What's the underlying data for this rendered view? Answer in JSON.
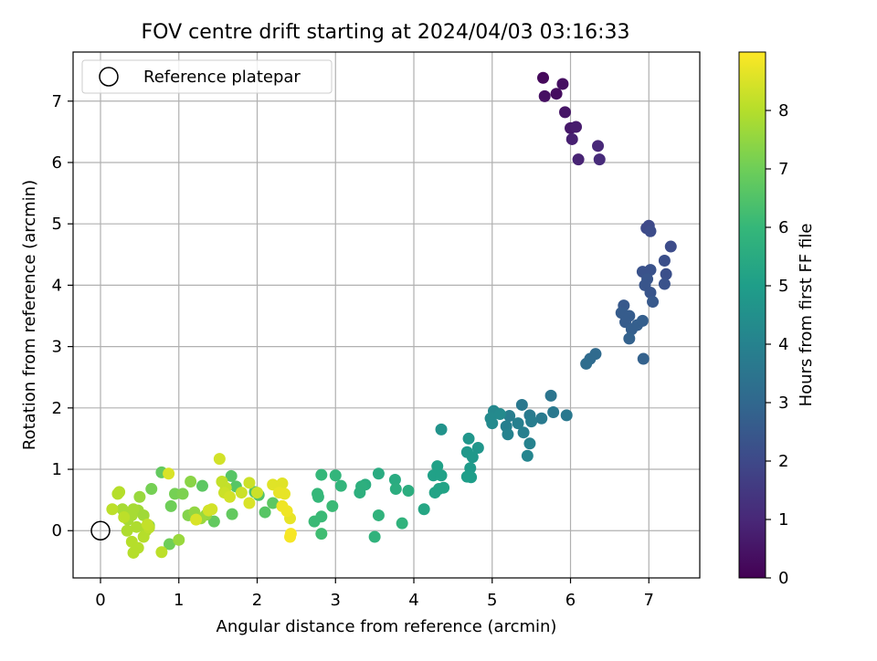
{
  "chart_data": {
    "type": "scatter",
    "title": "FOV centre drift starting at 2024/04/03 03:16:33",
    "xlabel": "Angular distance from reference (arcmin)",
    "ylabel": "Rotation from reference (arcmin)",
    "xlim": [
      -0.35,
      7.65
    ],
    "ylim": [
      -0.77,
      7.8
    ],
    "xticks": [
      0,
      1,
      2,
      3,
      4,
      5,
      6,
      7
    ],
    "yticks": [
      0,
      1,
      2,
      3,
      4,
      5,
      6,
      7
    ],
    "grid": true,
    "legend": {
      "position": "top-left",
      "entries": [
        "Reference platepar"
      ]
    },
    "reference_point": {
      "x": 0,
      "y": 0,
      "marker": "open-circle",
      "label": "Reference platepar"
    },
    "colorbar": {
      "label": "Hours from first FF file",
      "min": 0,
      "max": 9,
      "ticks": [
        0,
        1,
        2,
        3,
        4,
        5,
        6,
        7,
        8
      ],
      "colormap": "viridis",
      "colors": [
        "#440154",
        "#482878",
        "#3e4989",
        "#31688e",
        "#26828e",
        "#1f9e89",
        "#35b779",
        "#6ece58",
        "#b5de2b",
        "#fde725"
      ]
    },
    "series": [
      {
        "points": [
          [
            5.65,
            7.38,
            0.2
          ],
          [
            5.82,
            7.12,
            0.3
          ],
          [
            5.9,
            7.28,
            0.35
          ],
          [
            5.67,
            7.08,
            0.4
          ],
          [
            5.93,
            6.82,
            0.5
          ],
          [
            6.0,
            6.56,
            0.6
          ],
          [
            6.07,
            6.58,
            0.7
          ],
          [
            6.02,
            6.38,
            0.8
          ],
          [
            6.1,
            6.05,
            0.9
          ],
          [
            6.35,
            6.27,
            1.0
          ],
          [
            6.37,
            6.05,
            1.1
          ],
          [
            6.97,
            4.93,
            2.0
          ],
          [
            7.0,
            4.97,
            2.0
          ],
          [
            7.02,
            4.88,
            2.1
          ],
          [
            7.28,
            4.63,
            2.1
          ],
          [
            7.2,
            4.4,
            2.2
          ],
          [
            7.22,
            4.18,
            2.2
          ],
          [
            7.2,
            4.02,
            2.3
          ],
          [
            6.92,
            4.22,
            2.3
          ],
          [
            7.02,
            4.25,
            2.3
          ],
          [
            6.98,
            4.1,
            2.4
          ],
          [
            6.95,
            4.0,
            2.4
          ],
          [
            7.02,
            3.88,
            2.4
          ],
          [
            7.05,
            3.73,
            2.5
          ],
          [
            6.68,
            3.67,
            2.5
          ],
          [
            6.65,
            3.55,
            2.6
          ],
          [
            6.75,
            3.5,
            2.6
          ],
          [
            6.7,
            3.4,
            2.6
          ],
          [
            6.85,
            3.35,
            2.7
          ],
          [
            6.92,
            3.42,
            2.7
          ],
          [
            6.78,
            3.28,
            2.7
          ],
          [
            6.75,
            3.13,
            2.8
          ],
          [
            6.93,
            2.8,
            2.8
          ],
          [
            6.32,
            2.88,
            3.1
          ],
          [
            6.25,
            2.8,
            3.1
          ],
          [
            6.2,
            2.72,
            3.2
          ],
          [
            5.75,
            2.2,
            3.5
          ],
          [
            5.38,
            2.05,
            3.6
          ],
          [
            5.78,
            1.93,
            3.6
          ],
          [
            5.95,
            1.88,
            3.6
          ],
          [
            5.63,
            1.83,
            3.7
          ],
          [
            5.48,
            1.88,
            3.7
          ],
          [
            5.5,
            1.78,
            3.8
          ],
          [
            5.22,
            1.87,
            3.8
          ],
          [
            5.33,
            1.75,
            3.9
          ],
          [
            5.18,
            1.7,
            3.9
          ],
          [
            5.4,
            1.6,
            3.9
          ],
          [
            5.2,
            1.57,
            4.0
          ],
          [
            5.48,
            1.42,
            4.0
          ],
          [
            5.45,
            1.22,
            4.1
          ],
          [
            5.02,
            1.95,
            4.2
          ],
          [
            4.98,
            1.83,
            4.3
          ],
          [
            5.0,
            1.75,
            4.3
          ],
          [
            5.1,
            1.9,
            4.3
          ],
          [
            4.35,
            1.65,
            4.6
          ],
          [
            4.7,
            1.5,
            4.7
          ],
          [
            4.82,
            1.35,
            4.7
          ],
          [
            4.68,
            1.28,
            4.8
          ],
          [
            4.75,
            1.2,
            4.8
          ],
          [
            4.72,
            1.02,
            4.9
          ],
          [
            4.73,
            0.87,
            5.0
          ],
          [
            4.68,
            0.88,
            5.0
          ],
          [
            4.3,
            1.05,
            5.1
          ],
          [
            4.25,
            0.9,
            5.1
          ],
          [
            4.35,
            0.9,
            5.1
          ],
          [
            4.27,
            0.62,
            5.2
          ],
          [
            4.38,
            0.7,
            5.2
          ],
          [
            4.32,
            0.68,
            5.2
          ],
          [
            4.13,
            0.35,
            5.3
          ],
          [
            3.76,
            0.83,
            5.5
          ],
          [
            3.55,
            0.93,
            5.5
          ],
          [
            3.93,
            0.65,
            5.6
          ],
          [
            3.77,
            0.68,
            5.6
          ],
          [
            3.38,
            0.75,
            5.6
          ],
          [
            3.33,
            0.72,
            5.7
          ],
          [
            3.31,
            0.62,
            5.7
          ],
          [
            3.55,
            0.25,
            5.8
          ],
          [
            3.85,
            0.12,
            5.8
          ],
          [
            3.5,
            -0.1,
            5.8
          ],
          [
            3.0,
            0.9,
            5.9
          ],
          [
            3.07,
            0.73,
            5.9
          ],
          [
            2.82,
            0.91,
            6.0
          ],
          [
            2.77,
            0.6,
            6.0
          ],
          [
            2.78,
            0.55,
            6.0
          ],
          [
            2.96,
            0.4,
            6.1
          ],
          [
            2.82,
            0.23,
            6.1
          ],
          [
            2.73,
            0.15,
            6.1
          ],
          [
            2.82,
            -0.05,
            6.2
          ],
          [
            2.02,
            0.58,
            6.5
          ],
          [
            1.97,
            0.63,
            6.5
          ],
          [
            1.67,
            0.89,
            6.6
          ],
          [
            1.73,
            0.72,
            6.6
          ],
          [
            2.1,
            0.3,
            6.6
          ],
          [
            2.2,
            0.45,
            6.7
          ],
          [
            1.3,
            0.73,
            6.7
          ],
          [
            1.45,
            0.15,
            6.8
          ],
          [
            1.68,
            0.27,
            6.8
          ],
          [
            0.78,
            0.95,
            6.8
          ],
          [
            0.9,
            0.4,
            7.0
          ],
          [
            0.88,
            -0.22,
            7.0
          ],
          [
            0.65,
            0.68,
            7.1
          ],
          [
            0.95,
            0.6,
            7.1
          ],
          [
            1.05,
            0.6,
            7.2
          ],
          [
            0.62,
            0.08,
            7.2
          ],
          [
            1.12,
            0.25,
            7.3
          ],
          [
            1.15,
            0.8,
            7.4
          ],
          [
            1.2,
            0.3,
            7.5
          ],
          [
            1.35,
            0.26,
            7.5
          ],
          [
            1.28,
            0.2,
            7.6
          ],
          [
            1.0,
            -0.15,
            7.6
          ],
          [
            0.5,
            0.55,
            7.6
          ],
          [
            0.48,
            0.33,
            7.7
          ],
          [
            0.55,
            0.25,
            7.7
          ],
          [
            0.42,
            0.35,
            7.8
          ],
          [
            0.28,
            0.35,
            7.8
          ],
          [
            0.35,
            0.18,
            7.8
          ],
          [
            0.4,
            0.25,
            7.8
          ],
          [
            0.46,
            0.06,
            7.9
          ],
          [
            0.58,
            0.0,
            7.9
          ],
          [
            0.34,
            0.0,
            7.9
          ],
          [
            0.4,
            -0.18,
            8.0
          ],
          [
            0.48,
            -0.28,
            8.0
          ],
          [
            0.42,
            -0.36,
            8.0
          ],
          [
            0.55,
            -0.1,
            8.0
          ],
          [
            0.22,
            0.6,
            8.0
          ],
          [
            0.24,
            0.63,
            8.0
          ],
          [
            0.3,
            0.22,
            8.1
          ],
          [
            0.15,
            0.35,
            8.1
          ],
          [
            0.62,
            0.05,
            8.1
          ],
          [
            0.78,
            -0.35,
            8.1
          ],
          [
            0.6,
            0.1,
            8.2
          ],
          [
            1.55,
            0.8,
            8.2
          ],
          [
            1.6,
            0.7,
            8.2
          ],
          [
            1.8,
            0.62,
            8.3
          ],
          [
            1.9,
            0.78,
            8.3
          ],
          [
            2.0,
            0.62,
            8.3
          ],
          [
            1.58,
            0.62,
            8.3
          ],
          [
            1.65,
            0.55,
            8.4
          ],
          [
            1.52,
            1.17,
            8.4
          ],
          [
            1.38,
            0.33,
            8.4
          ],
          [
            1.42,
            0.35,
            8.4
          ],
          [
            1.9,
            0.45,
            8.5
          ],
          [
            1.22,
            0.18,
            8.5
          ],
          [
            0.87,
            0.93,
            8.5
          ],
          [
            2.2,
            0.75,
            8.6
          ],
          [
            2.32,
            0.77,
            8.6
          ],
          [
            2.35,
            0.6,
            8.7
          ],
          [
            2.28,
            0.62,
            8.7
          ],
          [
            2.42,
            0.2,
            8.7
          ],
          [
            2.38,
            0.32,
            8.8
          ],
          [
            2.32,
            0.4,
            8.8
          ],
          [
            2.43,
            -0.05,
            8.9
          ],
          [
            2.42,
            -0.1,
            8.9
          ]
        ]
      }
    ]
  }
}
